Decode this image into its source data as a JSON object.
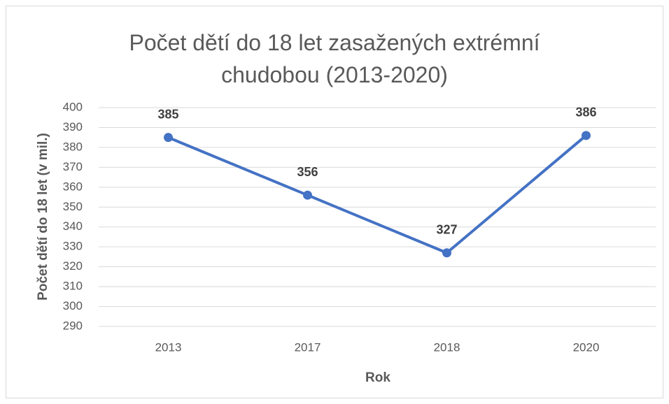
{
  "chart_data": {
    "type": "line",
    "title": "Počet dětí do 18 let zasažených extrémní chudobou (2013-2020)",
    "x_label": "Rok",
    "y_label": "Počet dětí do 18 let (v mil.)",
    "categories": [
      "2013",
      "2017",
      "2018",
      "2020"
    ],
    "series": [
      {
        "name": "Počet dětí",
        "color": "#4472c4",
        "values": [
          385,
          356,
          327,
          386
        ]
      }
    ],
    "ylim": [
      290,
      400
    ],
    "yticks": [
      290,
      300,
      310,
      320,
      330,
      340,
      350,
      360,
      370,
      380,
      390,
      400
    ],
    "grid": true
  }
}
